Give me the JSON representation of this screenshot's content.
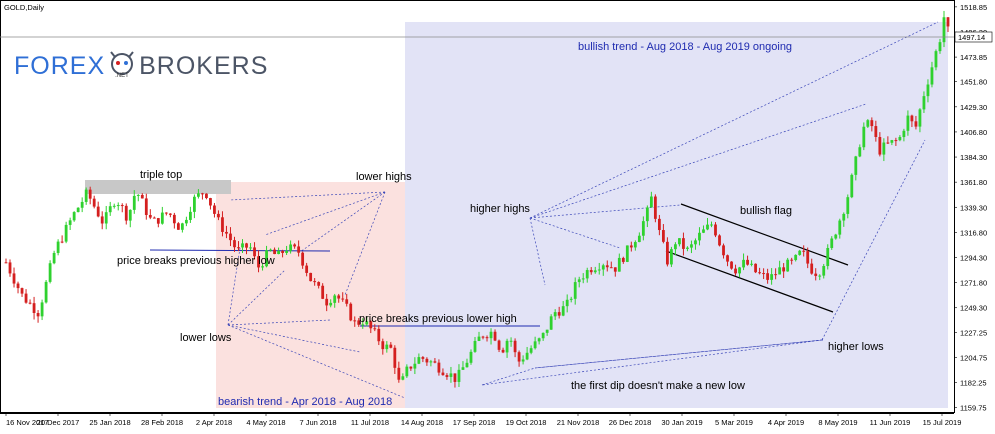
{
  "chart_data": {
    "type": "candlestick",
    "symbol_label": "GOLD,Daily",
    "current_price": "1497.14",
    "y_ticks": [
      "1518.85",
      "1496.20",
      "1473.85",
      "1451.80",
      "1429.30",
      "1406.80",
      "1384.30",
      "1361.80",
      "1339.30",
      "1316.80",
      "1294.30",
      "1271.80",
      "1249.30",
      "1227.25",
      "1204.75",
      "1182.25",
      "1159.75"
    ],
    "x_ticks": [
      "16 Nov 2017",
      "20 Dec 2017",
      "25 Jan 2018",
      "28 Feb 2018",
      "2 Apr 2018",
      "4 May 2018",
      "7 Jun 2018",
      "11 Jul 2018",
      "14 Aug 2018",
      "17 Sep 2018",
      "19 Oct 2018",
      "21 Nov 2018",
      "26 Dec 2018",
      "30 Jan 2019",
      "5 Mar 2019",
      "4 Apr 2019",
      "8 May 2019",
      "11 Jun 2019",
      "15 Jul 2019"
    ],
    "ylim": [
      1155,
      1525
    ],
    "price_path": [
      [
        0,
        1290
      ],
      [
        4,
        1260
      ],
      [
        8,
        1245
      ],
      [
        12,
        1300
      ],
      [
        17,
        1335
      ],
      [
        20,
        1352
      ],
      [
        24,
        1325
      ],
      [
        27,
        1348
      ],
      [
        30,
        1330
      ],
      [
        32,
        1355
      ],
      [
        36,
        1325
      ],
      [
        40,
        1335
      ],
      [
        43,
        1320
      ],
      [
        46,
        1345
      ],
      [
        49,
        1355
      ],
      [
        52,
        1328
      ],
      [
        55,
        1312
      ],
      [
        57,
        1300
      ],
      [
        60,
        1305
      ],
      [
        62,
        1285
      ],
      [
        65,
        1300
      ],
      [
        67,
        1295
      ],
      [
        69,
        1303
      ],
      [
        72,
        1300
      ],
      [
        75,
        1275
      ],
      [
        79,
        1255
      ],
      [
        81,
        1262
      ],
      [
        84,
        1248
      ],
      [
        86,
        1235
      ],
      [
        88,
        1238
      ],
      [
        91,
        1225
      ],
      [
        93,
        1215
      ],
      [
        95,
        1212
      ],
      [
        97,
        1178
      ],
      [
        99,
        1195
      ],
      [
        102,
        1205
      ],
      [
        105,
        1200
      ],
      [
        108,
        1193
      ],
      [
        111,
        1185
      ],
      [
        114,
        1205
      ],
      [
        117,
        1225
      ],
      [
        120,
        1228
      ],
      [
        122,
        1210
      ],
      [
        124,
        1225
      ],
      [
        126,
        1200
      ],
      [
        129,
        1212
      ],
      [
        132,
        1222
      ],
      [
        135,
        1245
      ],
      [
        138,
        1250
      ],
      [
        141,
        1275
      ],
      [
        144,
        1285
      ],
      [
        147,
        1290
      ],
      [
        150,
        1285
      ],
      [
        153,
        1300
      ],
      [
        156,
        1318
      ],
      [
        158,
        1335
      ],
      [
        159,
        1348
      ],
      [
        161,
        1315
      ],
      [
        163,
        1290
      ],
      [
        165,
        1310
      ],
      [
        168,
        1300
      ],
      [
        171,
        1315
      ],
      [
        174,
        1325
      ],
      [
        176,
        1305
      ],
      [
        178,
        1290
      ],
      [
        180,
        1283
      ],
      [
        182,
        1290
      ],
      [
        185,
        1280
      ],
      [
        188,
        1275
      ],
      [
        191,
        1285
      ],
      [
        194,
        1290
      ],
      [
        196,
        1300
      ],
      [
        198,
        1285
      ],
      [
        200,
        1280
      ],
      [
        202,
        1295
      ],
      [
        205,
        1325
      ],
      [
        207,
        1345
      ],
      [
        209,
        1375
      ],
      [
        211,
        1410
      ],
      [
        213,
        1415
      ],
      [
        215,
        1390
      ],
      [
        217,
        1395
      ],
      [
        220,
        1400
      ],
      [
        222,
        1420
      ],
      [
        224,
        1410
      ],
      [
        226,
        1440
      ],
      [
        228,
        1465
      ],
      [
        230,
        1490
      ],
      [
        231,
        1510
      ],
      [
        232,
        1497
      ]
    ],
    "annotations": {
      "triple_top": "triple top",
      "lower_highs": "lower highs",
      "price_breaks_higher_low": "price breaks previous higher low",
      "lower_lows": "lower lows",
      "price_breaks_lower_high": "price breaks previous lower high",
      "bearish_trend": "bearish trend - Apr 2018 - Aug 2018",
      "bullish_trend": "bullish trend - Aug 2018 - Aug 2019 ongoing",
      "higher_highs": "higher highs",
      "bullish_flag": "bullish flag",
      "higher_lows": "higher lows",
      "first_dip": "the first dip doesn't make a new low"
    },
    "colors": {
      "bull_candle": "#2fd12f",
      "bear_candle": "#d41f1f",
      "bearish_zone": "#fbe1df",
      "bullish_zone": "#e2e3f6",
      "triple_top_band": "#c8c8c8",
      "annotation_blue": "#1f2bb0",
      "guide_line": "#3a46b8",
      "price_line": "#8a8a8a"
    }
  },
  "brand": {
    "part1": "FOREX",
    "part2": "BROKERS",
    "net": ".NET"
  }
}
